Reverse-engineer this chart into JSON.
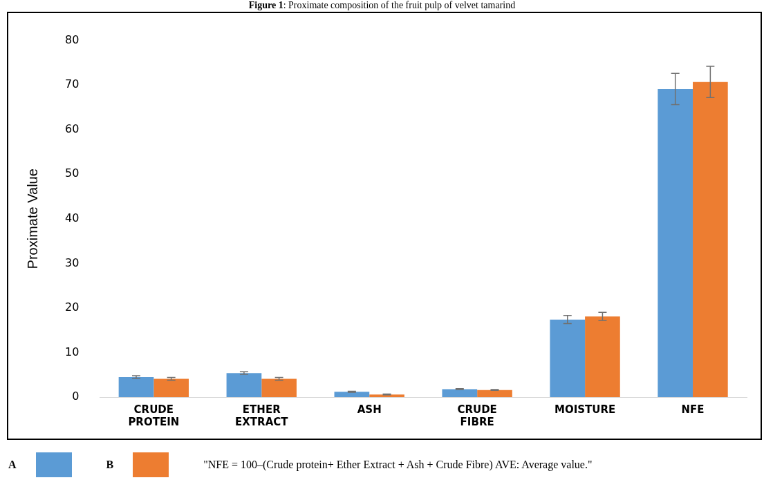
{
  "chart_data": {
    "type": "bar",
    "title": "Figure 1: Proximate composition of the fruit pulp of velvet tamarind",
    "ylabel": "Proximate Value",
    "categories": [
      "CRUDE PROTEIN",
      "ETHER EXTRACT",
      "ASH",
      "CRUDE FIBRE",
      "MOISTURE",
      "NFE"
    ],
    "series": [
      {
        "name": "A",
        "color": "#5b9bd5",
        "values": [
          4.5,
          5.4,
          1.2,
          1.8,
          17.4,
          69.1
        ],
        "errors": [
          0.3,
          0.3,
          0.1,
          0.1,
          0.9,
          3.5
        ]
      },
      {
        "name": "B",
        "color": "#ed7d31",
        "values": [
          4.1,
          4.1,
          0.6,
          1.6,
          18.1,
          70.7
        ],
        "errors": [
          0.3,
          0.3,
          0.1,
          0.1,
          0.9,
          3.5
        ]
      }
    ],
    "ylim": [
      0,
      80
    ],
    "yticks": [
      0,
      10,
      20,
      30,
      40,
      50,
      60,
      70,
      80
    ],
    "grid": false,
    "legend": "bottom left",
    "annotations": [
      "\"NFE = 100–(Crude protein+ Ether Extract + Ash + Crude Fibre) AVE: Average value.\""
    ]
  }
}
